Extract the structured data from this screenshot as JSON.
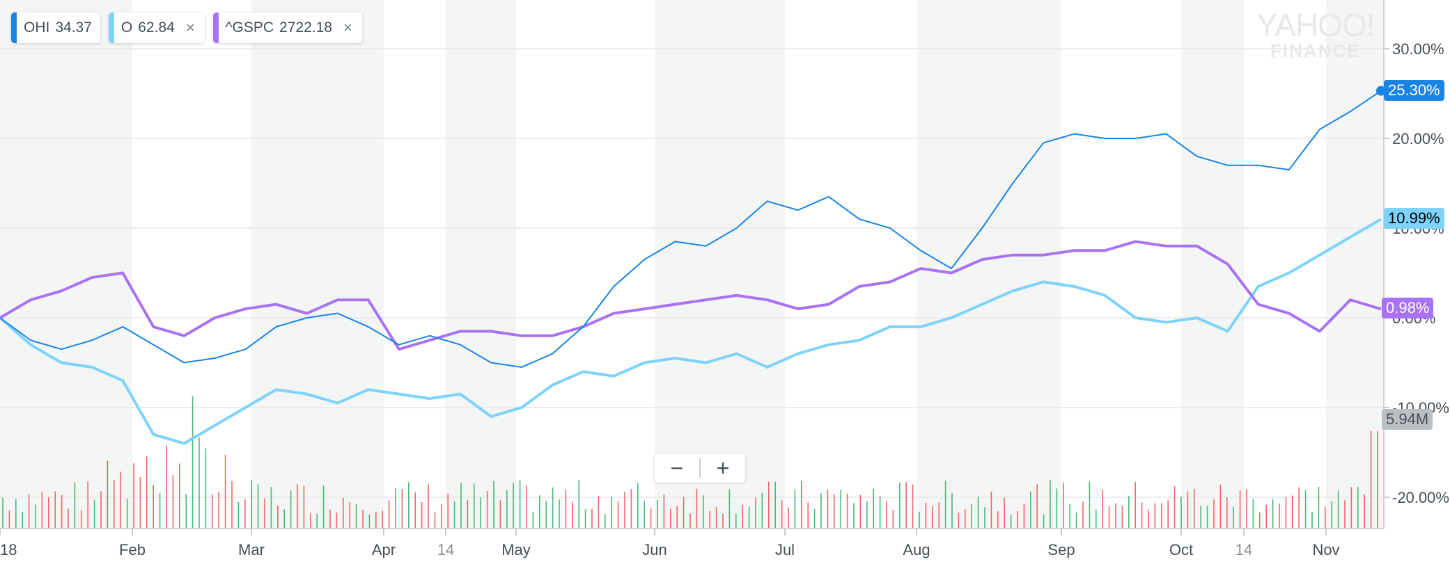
{
  "legend": [
    {
      "symbol": "OHI",
      "value": "34.37",
      "color": "#1a84e5",
      "removable": false
    },
    {
      "symbol": "O",
      "value": "62.84",
      "color": "#7dd3fc",
      "removable": true,
      "close_icon": "×"
    },
    {
      "symbol": "^GSPC",
      "value": "2722.18",
      "color": "#a972f5",
      "removable": true,
      "close_icon": "×"
    }
  ],
  "watermark": {
    "line1": "YAHOO!",
    "line2": "FINANCE"
  },
  "zoom_controls": {
    "minus": "−",
    "plus": "+"
  },
  "tags": {
    "ohi": {
      "text": "25.30%",
      "bg": "#1a84e5",
      "fg": "#ffffff"
    },
    "o": {
      "text": "10.99%",
      "bg": "#7dd3fc",
      "fg": "#000000"
    },
    "gspc": {
      "text": "0.98%",
      "bg": "#a972f5",
      "fg": "#ffffff"
    },
    "volume": {
      "text": "5.94M",
      "bg": "#bcc0c4",
      "fg": "#464e56"
    }
  },
  "chart_data": {
    "type": "line",
    "title": "",
    "xlabel": "",
    "ylabel": "",
    "ylim": [
      -22,
      32
    ],
    "y_ticks": [
      "30.00%",
      "20.00%",
      "10.00%",
      "0.00%",
      "-10.00%",
      "-20.00%"
    ],
    "x_ticks": [
      "18",
      "Feb",
      "Mar",
      "Apr",
      "14",
      "May",
      "Jun",
      "Jul",
      "Aug",
      "Sep",
      "Oct",
      "14",
      "Nov"
    ],
    "grid": true,
    "legend_position": "top-left",
    "x": [
      "Jan 2",
      "Jan 9",
      "Jan 16",
      "Jan 23",
      "Jan 30",
      "Feb 6",
      "Feb 13",
      "Feb 20",
      "Feb 27",
      "Mar 6",
      "Mar 13",
      "Mar 20",
      "Mar 27",
      "Apr 3",
      "Apr 10",
      "Apr 17",
      "Apr 24",
      "May 1",
      "May 8",
      "May 15",
      "May 22",
      "May 29",
      "Jun 5",
      "Jun 12",
      "Jun 19",
      "Jun 26",
      "Jul 3",
      "Jul 10",
      "Jul 17",
      "Jul 24",
      "Jul 31",
      "Aug 7",
      "Aug 14",
      "Aug 21",
      "Aug 28",
      "Sep 4",
      "Sep 11",
      "Sep 18",
      "Sep 25",
      "Oct 2",
      "Oct 9",
      "Oct 16",
      "Oct 23",
      "Oct 30",
      "Nov 6",
      "Nov 9"
    ],
    "series": [
      {
        "name": "OHI",
        "color": "#1a84e5",
        "values": [
          0,
          -2.5,
          -3.5,
          -2.5,
          -1,
          -3,
          -5,
          -4.5,
          -3.5,
          -1,
          0,
          0.5,
          -1,
          -3,
          -2,
          -3,
          -5,
          -5.5,
          -4,
          -1,
          3.5,
          6.5,
          8.5,
          8,
          10,
          13,
          12,
          13.5,
          11,
          10,
          7.5,
          5.5,
          10,
          15,
          19.5,
          20.5,
          20,
          20,
          20.5,
          18,
          17,
          17,
          16.5,
          21,
          23,
          25.3
        ]
      },
      {
        "name": "O",
        "color": "#7dd3fc",
        "values": [
          0,
          -3,
          -5,
          -5.5,
          -7,
          -13,
          -14,
          -12,
          -10,
          -8,
          -8.5,
          -9.5,
          -8,
          -8.5,
          -9,
          -8.5,
          -11,
          -10,
          -7.5,
          -6,
          -6.5,
          -5,
          -4.5,
          -5,
          -4,
          -5.5,
          -4,
          -3,
          -2.5,
          -1,
          -1,
          0,
          1.5,
          3,
          4,
          3.5,
          2.5,
          0,
          -0.5,
          0,
          -1.5,
          3.5,
          5,
          7,
          9,
          10.99
        ]
      },
      {
        "name": "^GSPC",
        "color": "#a972f5",
        "values": [
          0,
          2,
          3,
          4.5,
          5,
          -1,
          -2,
          0,
          1,
          1.5,
          0.5,
          2,
          2,
          -3.5,
          -2.5,
          -1.5,
          -1.5,
          -2,
          -2,
          -1,
          0.5,
          1,
          1.5,
          2,
          2.5,
          2,
          1,
          1.5,
          3.5,
          4,
          5.5,
          5,
          6.5,
          7,
          7,
          7.5,
          7.5,
          8.5,
          8,
          8,
          6,
          1.5,
          0.5,
          -1.5,
          2,
          0.98
        ]
      }
    ],
    "volume": {
      "last_label": "5.94M",
      "up_color": "#27ae60",
      "down_color": "#f04b4b"
    }
  }
}
